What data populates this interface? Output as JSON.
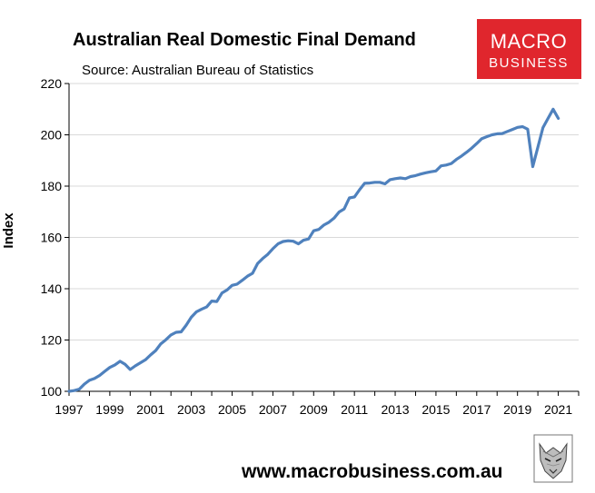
{
  "chart_data": {
    "type": "line",
    "title": "Australian Real Domestic Final Demand",
    "subtitle": "Source: Australian Bureau of Statistics",
    "ylabel": "Index",
    "xlabel": "",
    "xlim": [
      1997,
      2022
    ],
    "ylim": [
      100,
      220
    ],
    "x_ticks": [
      "1997",
      "1999",
      "2001",
      "2003",
      "2005",
      "2007",
      "2009",
      "2011",
      "2013",
      "2015",
      "2017",
      "2019",
      "2021"
    ],
    "y_ticks": [
      "100",
      "120",
      "140",
      "160",
      "180",
      "200",
      "220"
    ],
    "grid": "horizontal",
    "line_color": "#4f81bd",
    "series": [
      {
        "x": [
          1997.0,
          1997.25,
          1997.5,
          1997.75,
          1998.0,
          1998.25,
          1998.5,
          1998.75,
          1999.0,
          1999.25,
          1999.5,
          1999.75,
          2000.0,
          2000.25,
          2000.5,
          2000.75,
          2001.0,
          2001.25,
          2001.5,
          2001.75,
          2002.0,
          2002.25,
          2002.5,
          2002.75,
          2003.0,
          2003.25,
          2003.5,
          2003.75,
          2004.0,
          2004.25,
          2004.5,
          2004.75,
          2005.0,
          2005.25,
          2005.5,
          2005.75,
          2006.0,
          2006.25,
          2006.5,
          2006.75,
          2007.0,
          2007.25,
          2007.5,
          2007.75,
          2008.0,
          2008.25,
          2008.5,
          2008.75,
          2009.0,
          2009.25,
          2009.5,
          2009.75,
          2010.0,
          2010.25,
          2010.5,
          2010.75,
          2011.0,
          2011.25,
          2011.5,
          2011.75,
          2012.0,
          2012.25,
          2012.5,
          2012.75,
          2013.0,
          2013.25,
          2013.5,
          2013.75,
          2014.0,
          2014.25,
          2014.5,
          2014.75,
          2015.0,
          2015.25,
          2015.5,
          2015.75,
          2016.0,
          2016.25,
          2016.5,
          2016.75,
          2017.0,
          2017.25,
          2017.5,
          2017.75,
          2018.0,
          2018.25,
          2018.5,
          2018.75,
          2019.0,
          2019.25,
          2019.5,
          2019.75,
          2020.0,
          2020.25,
          2020.5,
          2020.75,
          2021.0
        ],
        "values": [
          100.0,
          100.3,
          100.8,
          102.8,
          104.3,
          105.0,
          106.2,
          107.8,
          109.3,
          110.3,
          111.7,
          110.5,
          108.5,
          109.9,
          111.1,
          112.3,
          114.2,
          115.9,
          118.5,
          120.1,
          122.0,
          123.0,
          123.2,
          125.8,
          128.9,
          131.0,
          132.0,
          132.9,
          135.2,
          135.0,
          138.3,
          139.5,
          141.3,
          141.8,
          143.3,
          144.9,
          146.0,
          149.8,
          151.8,
          153.4,
          155.6,
          157.5,
          158.4,
          158.7,
          158.5,
          157.5,
          158.9,
          159.4,
          162.6,
          163.1,
          164.8,
          165.9,
          167.5,
          169.9,
          171.1,
          175.4,
          175.8,
          178.6,
          181.1,
          181.2,
          181.5,
          181.5,
          180.9,
          182.5,
          182.9,
          183.2,
          182.9,
          183.7,
          184.1,
          184.7,
          185.2,
          185.6,
          185.9,
          187.9,
          188.2,
          188.8,
          190.4,
          191.7,
          193.2,
          194.8,
          196.6,
          198.5,
          199.3,
          200.0,
          200.4,
          200.5,
          201.3,
          202.1,
          202.9,
          203.2,
          202.2,
          187.6,
          195.2,
          202.8,
          206.4,
          210.0,
          206.4
        ]
      }
    ]
  },
  "logo": {
    "line1": "MACRO",
    "line2": "BUSINESS",
    "bg_color": "#e0262d"
  },
  "footer": {
    "url": "www.macrobusiness.com.au"
  },
  "wolf_icon": "wolf-head-icon"
}
